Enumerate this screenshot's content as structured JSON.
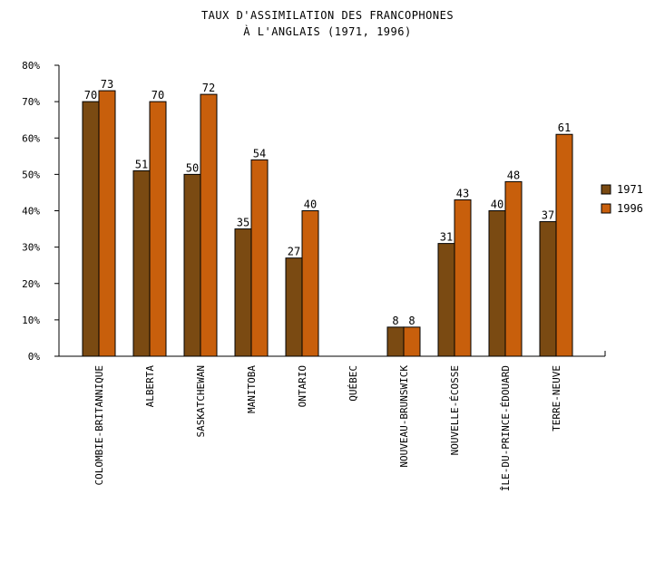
{
  "chart_data": {
    "type": "bar",
    "title": [
      "TAUX D'ASSIMILATION DES FRANCOPHONES",
      "À L'ANGLAIS (1971, 1996)"
    ],
    "categories": [
      "COLOMBIE-BRITANNIQUE",
      "ALBERTA",
      "SASKATCHEWAN",
      "MANITOBA",
      "ONTARIO",
      "QUÉBEC",
      "NOUVEAU-BRUNSWICK",
      "NOUVELLE-ÉCOSSE",
      "ÎLE-DU-PRINCE-ÉDOUARD",
      "TERRE-NEUVE"
    ],
    "series": [
      {
        "name": "1971",
        "color": "#7a4a12",
        "values": [
          70,
          51,
          50,
          35,
          27,
          null,
          8,
          31,
          40,
          37
        ]
      },
      {
        "name": "1996",
        "color": "#c85f0c",
        "values": [
          73,
          70,
          72,
          54,
          40,
          null,
          8,
          43,
          48,
          61
        ]
      }
    ],
    "ylim": [
      0,
      80
    ],
    "yticks": [
      "0%",
      "10%",
      "20%",
      "30%",
      "40%",
      "50%",
      "60%",
      "70%",
      "80%"
    ],
    "legend_position": "right",
    "grid": false
  }
}
